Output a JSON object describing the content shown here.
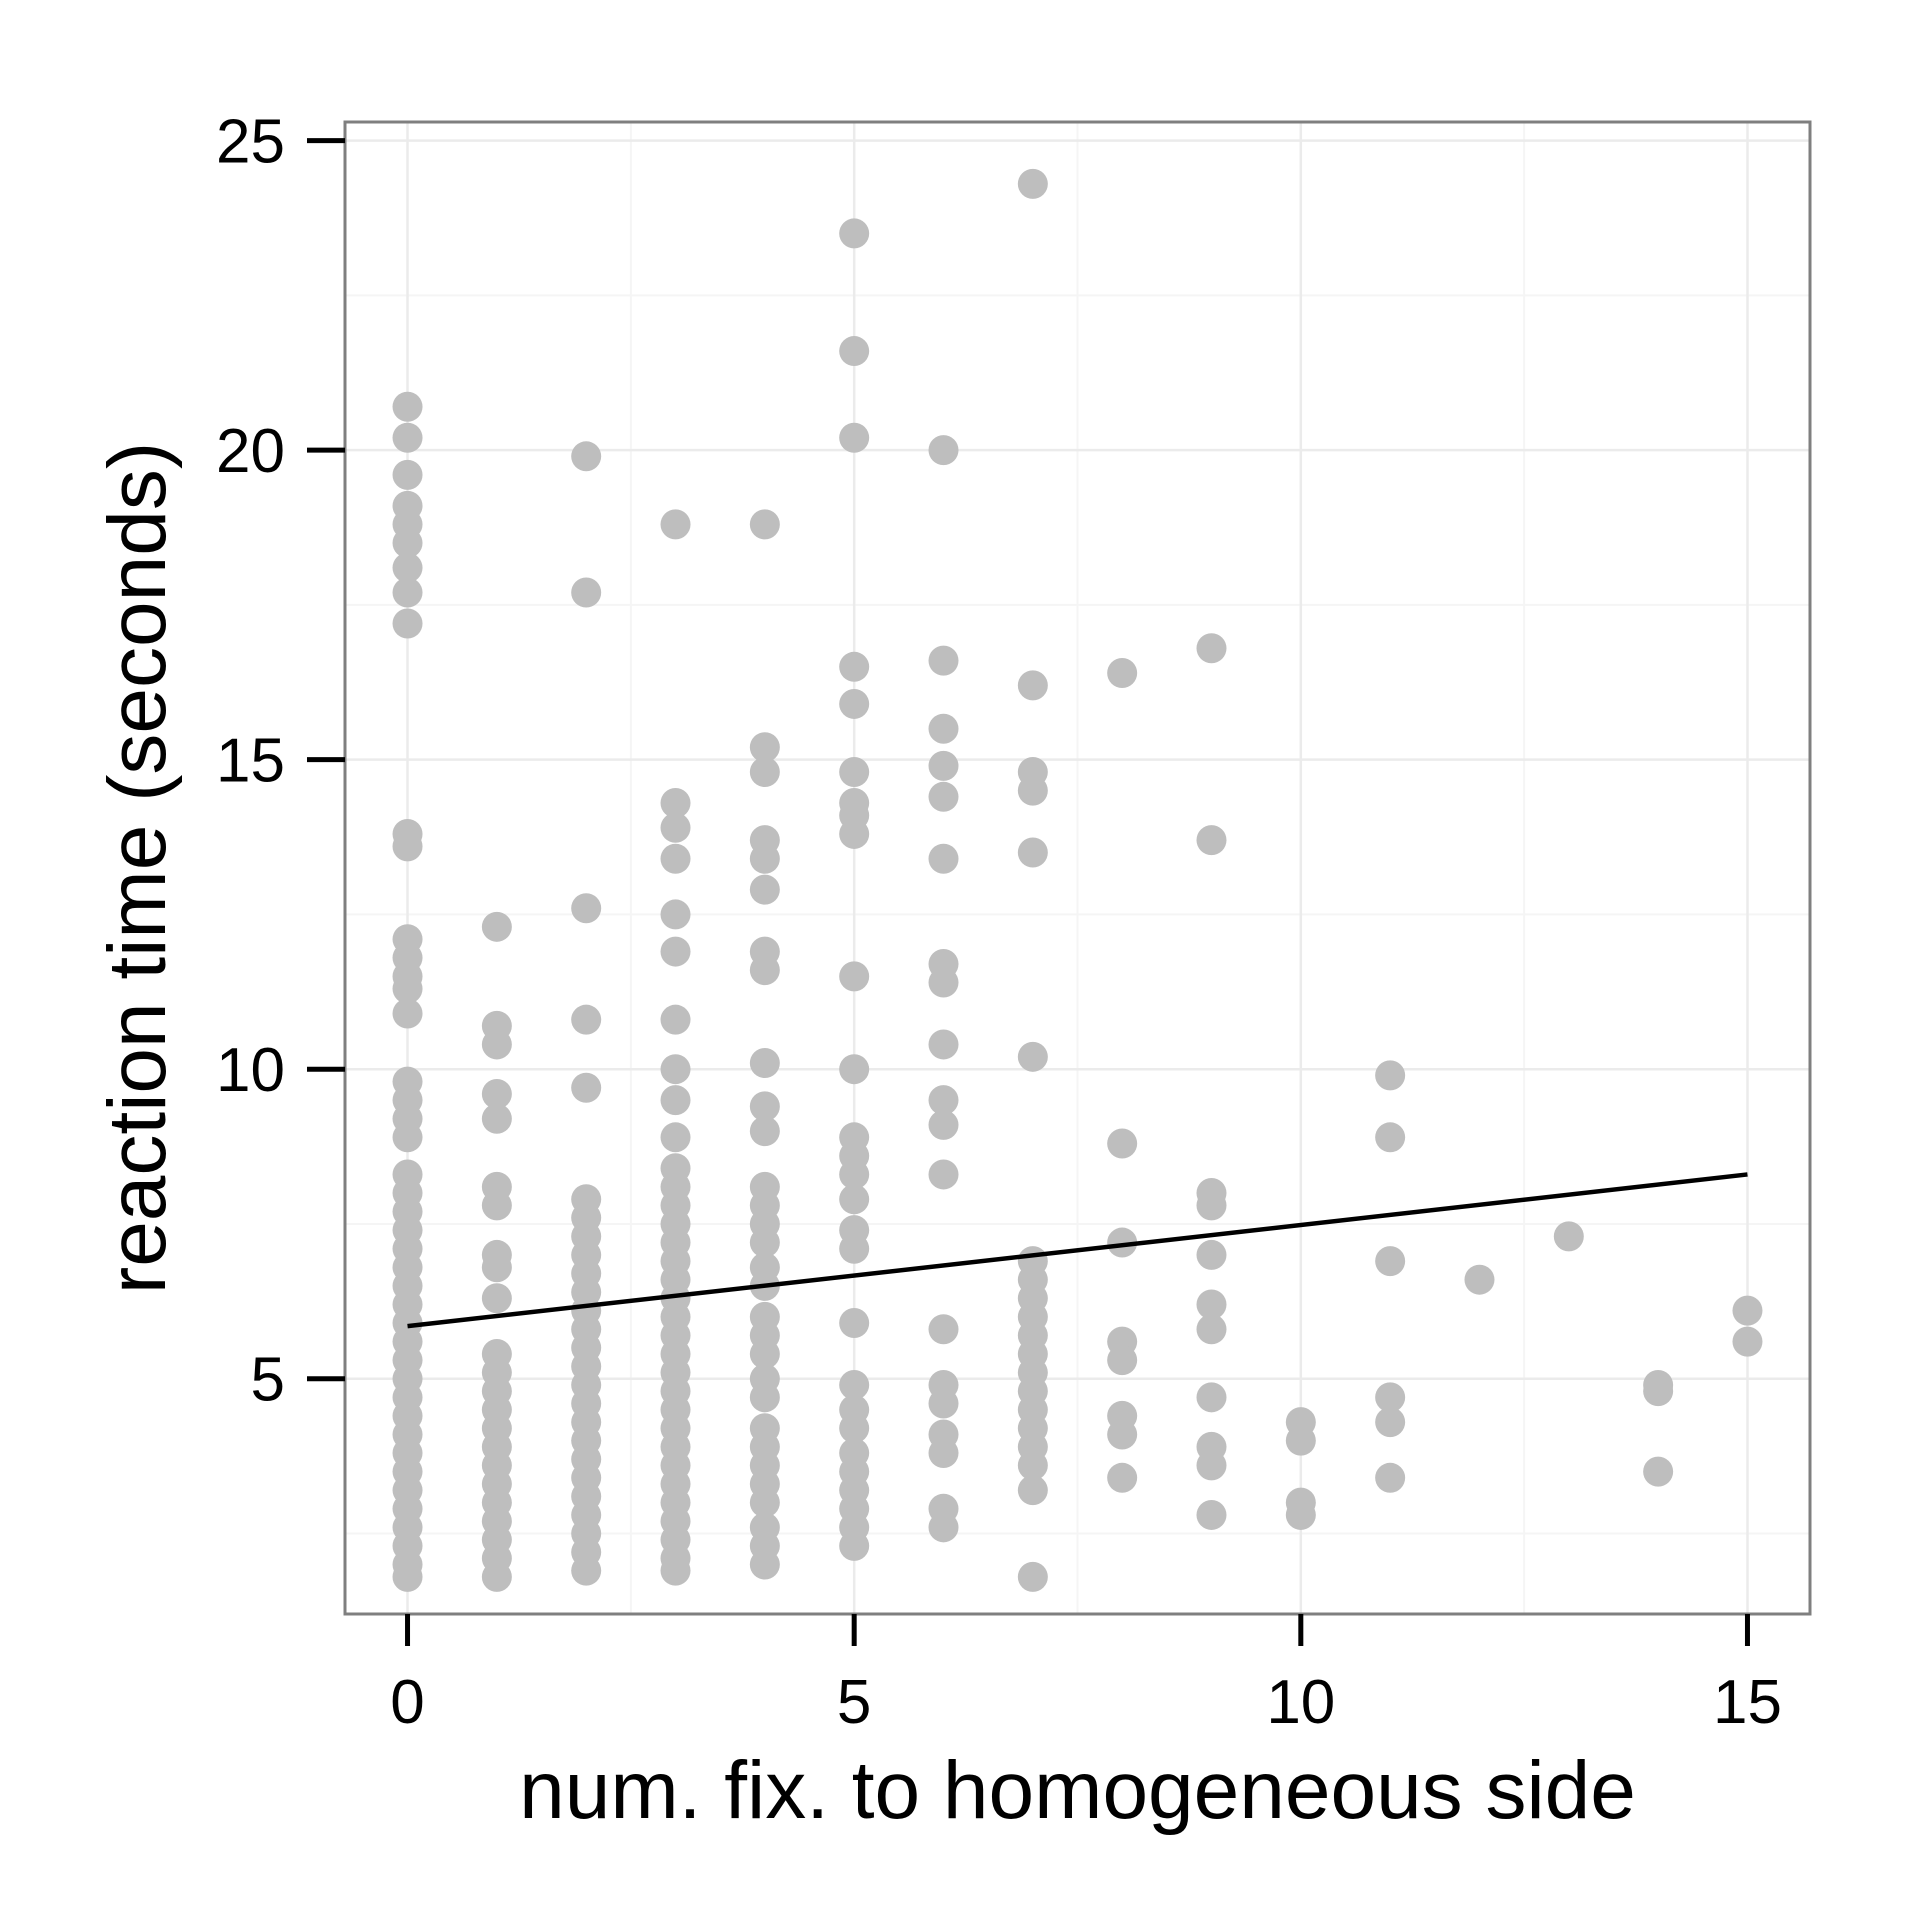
{
  "chart_data": {
    "type": "scatter",
    "title": "",
    "xlabel": "num. fix. to homogeneous side",
    "ylabel": "reaction time (seconds)",
    "xlim": [
      -0.7,
      15.7
    ],
    "ylim": [
      1.2,
      25.3
    ],
    "xticks": [
      0,
      5,
      10,
      15
    ],
    "yticks": [
      5,
      10,
      15,
      20,
      25
    ],
    "xtick_labels": [
      "0",
      "5",
      "10",
      "15"
    ],
    "ytick_labels": [
      "5",
      "10",
      "15",
      "20",
      "25"
    ],
    "grid": true,
    "point_color": "#bebebe",
    "line_color": "#000000",
    "panel_border_color": "#7f7f7f",
    "grid_color": "#ebebeb",
    "points": [
      {
        "x": 0,
        "y": 20.7
      },
      {
        "x": 0,
        "y": 20.2
      },
      {
        "x": 0,
        "y": 19.6
      },
      {
        "x": 0,
        "y": 19.1
      },
      {
        "x": 0,
        "y": 18.8
      },
      {
        "x": 0,
        "y": 18.5
      },
      {
        "x": 0,
        "y": 18.1
      },
      {
        "x": 0,
        "y": 17.7
      },
      {
        "x": 0,
        "y": 17.2
      },
      {
        "x": 0,
        "y": 13.8
      },
      {
        "x": 0,
        "y": 13.6
      },
      {
        "x": 0,
        "y": 12.1
      },
      {
        "x": 0,
        "y": 11.8
      },
      {
        "x": 0,
        "y": 11.5
      },
      {
        "x": 0,
        "y": 11.3
      },
      {
        "x": 0,
        "y": 10.9
      },
      {
        "x": 0,
        "y": 9.8
      },
      {
        "x": 0,
        "y": 9.5
      },
      {
        "x": 0,
        "y": 9.2
      },
      {
        "x": 0,
        "y": 8.9
      },
      {
        "x": 0,
        "y": 8.3
      },
      {
        "x": 0,
        "y": 8.0
      },
      {
        "x": 0,
        "y": 7.7
      },
      {
        "x": 0,
        "y": 7.4
      },
      {
        "x": 0,
        "y": 7.1
      },
      {
        "x": 0,
        "y": 6.8
      },
      {
        "x": 0,
        "y": 6.5
      },
      {
        "x": 0,
        "y": 6.2
      },
      {
        "x": 0,
        "y": 5.9
      },
      {
        "x": 0,
        "y": 5.6
      },
      {
        "x": 0,
        "y": 5.3
      },
      {
        "x": 0,
        "y": 5.0
      },
      {
        "x": 0,
        "y": 4.7
      },
      {
        "x": 0,
        "y": 4.4
      },
      {
        "x": 0,
        "y": 4.1
      },
      {
        "x": 0,
        "y": 3.8
      },
      {
        "x": 0,
        "y": 3.5
      },
      {
        "x": 0,
        "y": 3.2
      },
      {
        "x": 0,
        "y": 2.9
      },
      {
        "x": 0,
        "y": 2.6
      },
      {
        "x": 0,
        "y": 2.3
      },
      {
        "x": 0,
        "y": 2.0
      },
      {
        "x": 0,
        "y": 1.8
      },
      {
        "x": 1,
        "y": 12.3
      },
      {
        "x": 1,
        "y": 10.7
      },
      {
        "x": 1,
        "y": 10.4
      },
      {
        "x": 1,
        "y": 9.6
      },
      {
        "x": 1,
        "y": 9.2
      },
      {
        "x": 1,
        "y": 8.1
      },
      {
        "x": 1,
        "y": 7.8
      },
      {
        "x": 1,
        "y": 7.0
      },
      {
        "x": 1,
        "y": 6.8
      },
      {
        "x": 1,
        "y": 6.3
      },
      {
        "x": 1,
        "y": 5.4
      },
      {
        "x": 1,
        "y": 5.1
      },
      {
        "x": 1,
        "y": 4.8
      },
      {
        "x": 1,
        "y": 4.5
      },
      {
        "x": 1,
        "y": 4.2
      },
      {
        "x": 1,
        "y": 3.9
      },
      {
        "x": 1,
        "y": 3.6
      },
      {
        "x": 1,
        "y": 3.3
      },
      {
        "x": 1,
        "y": 3.0
      },
      {
        "x": 1,
        "y": 2.7
      },
      {
        "x": 1,
        "y": 2.4
      },
      {
        "x": 1,
        "y": 2.1
      },
      {
        "x": 1,
        "y": 1.8
      },
      {
        "x": 2,
        "y": 19.9
      },
      {
        "x": 2,
        "y": 17.7
      },
      {
        "x": 2,
        "y": 12.6
      },
      {
        "x": 2,
        "y": 10.8
      },
      {
        "x": 2,
        "y": 9.7
      },
      {
        "x": 2,
        "y": 7.9
      },
      {
        "x": 2,
        "y": 7.6
      },
      {
        "x": 2,
        "y": 7.3
      },
      {
        "x": 2,
        "y": 7.0
      },
      {
        "x": 2,
        "y": 6.7
      },
      {
        "x": 2,
        "y": 6.4
      },
      {
        "x": 2,
        "y": 6.1
      },
      {
        "x": 2,
        "y": 5.8
      },
      {
        "x": 2,
        "y": 5.5
      },
      {
        "x": 2,
        "y": 5.2
      },
      {
        "x": 2,
        "y": 4.9
      },
      {
        "x": 2,
        "y": 4.6
      },
      {
        "x": 2,
        "y": 4.3
      },
      {
        "x": 2,
        "y": 4.0
      },
      {
        "x": 2,
        "y": 3.7
      },
      {
        "x": 2,
        "y": 3.4
      },
      {
        "x": 2,
        "y": 3.1
      },
      {
        "x": 2,
        "y": 2.8
      },
      {
        "x": 2,
        "y": 2.5
      },
      {
        "x": 2,
        "y": 2.2
      },
      {
        "x": 2,
        "y": 1.9
      },
      {
        "x": 3,
        "y": 18.8
      },
      {
        "x": 3,
        "y": 14.3
      },
      {
        "x": 3,
        "y": 13.9
      },
      {
        "x": 3,
        "y": 13.4
      },
      {
        "x": 3,
        "y": 12.5
      },
      {
        "x": 3,
        "y": 11.9
      },
      {
        "x": 3,
        "y": 10.8
      },
      {
        "x": 3,
        "y": 10.0
      },
      {
        "x": 3,
        "y": 9.5
      },
      {
        "x": 3,
        "y": 8.9
      },
      {
        "x": 3,
        "y": 8.4
      },
      {
        "x": 3,
        "y": 8.1
      },
      {
        "x": 3,
        "y": 7.8
      },
      {
        "x": 3,
        "y": 7.5
      },
      {
        "x": 3,
        "y": 7.2
      },
      {
        "x": 3,
        "y": 6.9
      },
      {
        "x": 3,
        "y": 6.6
      },
      {
        "x": 3,
        "y": 6.3
      },
      {
        "x": 3,
        "y": 6.0
      },
      {
        "x": 3,
        "y": 5.7
      },
      {
        "x": 3,
        "y": 5.4
      },
      {
        "x": 3,
        "y": 5.1
      },
      {
        "x": 3,
        "y": 4.8
      },
      {
        "x": 3,
        "y": 4.5
      },
      {
        "x": 3,
        "y": 4.2
      },
      {
        "x": 3,
        "y": 3.9
      },
      {
        "x": 3,
        "y": 3.6
      },
      {
        "x": 3,
        "y": 3.3
      },
      {
        "x": 3,
        "y": 3.0
      },
      {
        "x": 3,
        "y": 2.7
      },
      {
        "x": 3,
        "y": 2.4
      },
      {
        "x": 3,
        "y": 2.1
      },
      {
        "x": 3,
        "y": 1.9
      },
      {
        "x": 4,
        "y": 18.8
      },
      {
        "x": 4,
        "y": 15.2
      },
      {
        "x": 4,
        "y": 14.8
      },
      {
        "x": 4,
        "y": 13.7
      },
      {
        "x": 4,
        "y": 13.4
      },
      {
        "x": 4,
        "y": 12.9
      },
      {
        "x": 4,
        "y": 11.9
      },
      {
        "x": 4,
        "y": 11.6
      },
      {
        "x": 4,
        "y": 10.1
      },
      {
        "x": 4,
        "y": 9.4
      },
      {
        "x": 4,
        "y": 9.0
      },
      {
        "x": 4,
        "y": 8.1
      },
      {
        "x": 4,
        "y": 7.8
      },
      {
        "x": 4,
        "y": 7.5
      },
      {
        "x": 4,
        "y": 7.2
      },
      {
        "x": 4,
        "y": 6.8
      },
      {
        "x": 4,
        "y": 6.5
      },
      {
        "x": 4,
        "y": 6.0
      },
      {
        "x": 4,
        "y": 5.7
      },
      {
        "x": 4,
        "y": 5.4
      },
      {
        "x": 4,
        "y": 5.0
      },
      {
        "x": 4,
        "y": 4.7
      },
      {
        "x": 4,
        "y": 4.2
      },
      {
        "x": 4,
        "y": 3.9
      },
      {
        "x": 4,
        "y": 3.6
      },
      {
        "x": 4,
        "y": 3.3
      },
      {
        "x": 4,
        "y": 3.0
      },
      {
        "x": 4,
        "y": 2.6
      },
      {
        "x": 4,
        "y": 2.3
      },
      {
        "x": 4,
        "y": 2.0
      },
      {
        "x": 5,
        "y": 23.5
      },
      {
        "x": 5,
        "y": 21.6
      },
      {
        "x": 5,
        "y": 20.2
      },
      {
        "x": 5,
        "y": 16.5
      },
      {
        "x": 5,
        "y": 15.9
      },
      {
        "x": 5,
        "y": 14.8
      },
      {
        "x": 5,
        "y": 14.3
      },
      {
        "x": 5,
        "y": 14.1
      },
      {
        "x": 5,
        "y": 13.8
      },
      {
        "x": 5,
        "y": 11.5
      },
      {
        "x": 5,
        "y": 10.0
      },
      {
        "x": 5,
        "y": 8.9
      },
      {
        "x": 5,
        "y": 8.6
      },
      {
        "x": 5,
        "y": 8.3
      },
      {
        "x": 5,
        "y": 7.9
      },
      {
        "x": 5,
        "y": 7.4
      },
      {
        "x": 5,
        "y": 7.1
      },
      {
        "x": 5,
        "y": 5.9
      },
      {
        "x": 5,
        "y": 4.9
      },
      {
        "x": 5,
        "y": 4.5
      },
      {
        "x": 5,
        "y": 4.2
      },
      {
        "x": 5,
        "y": 3.8
      },
      {
        "x": 5,
        "y": 3.5
      },
      {
        "x": 5,
        "y": 3.2
      },
      {
        "x": 5,
        "y": 2.9
      },
      {
        "x": 5,
        "y": 2.6
      },
      {
        "x": 5,
        "y": 2.3
      },
      {
        "x": 6,
        "y": 20.0
      },
      {
        "x": 6,
        "y": 16.6
      },
      {
        "x": 6,
        "y": 15.5
      },
      {
        "x": 6,
        "y": 14.9
      },
      {
        "x": 6,
        "y": 14.4
      },
      {
        "x": 6,
        "y": 13.4
      },
      {
        "x": 6,
        "y": 11.7
      },
      {
        "x": 6,
        "y": 11.4
      },
      {
        "x": 6,
        "y": 10.4
      },
      {
        "x": 6,
        "y": 9.5
      },
      {
        "x": 6,
        "y": 9.1
      },
      {
        "x": 6,
        "y": 8.3
      },
      {
        "x": 6,
        "y": 5.8
      },
      {
        "x": 6,
        "y": 4.9
      },
      {
        "x": 6,
        "y": 4.6
      },
      {
        "x": 6,
        "y": 4.1
      },
      {
        "x": 6,
        "y": 3.8
      },
      {
        "x": 6,
        "y": 2.9
      },
      {
        "x": 6,
        "y": 2.6
      },
      {
        "x": 7,
        "y": 24.3
      },
      {
        "x": 7,
        "y": 16.2
      },
      {
        "x": 7,
        "y": 14.8
      },
      {
        "x": 7,
        "y": 14.5
      },
      {
        "x": 7,
        "y": 13.5
      },
      {
        "x": 7,
        "y": 10.2
      },
      {
        "x": 7,
        "y": 6.9
      },
      {
        "x": 7,
        "y": 6.6
      },
      {
        "x": 7,
        "y": 6.3
      },
      {
        "x": 7,
        "y": 6.0
      },
      {
        "x": 7,
        "y": 5.7
      },
      {
        "x": 7,
        "y": 5.4
      },
      {
        "x": 7,
        "y": 5.1
      },
      {
        "x": 7,
        "y": 4.8
      },
      {
        "x": 7,
        "y": 4.5
      },
      {
        "x": 7,
        "y": 4.2
      },
      {
        "x": 7,
        "y": 3.9
      },
      {
        "x": 7,
        "y": 3.6
      },
      {
        "x": 7,
        "y": 3.2
      },
      {
        "x": 7,
        "y": 1.8
      },
      {
        "x": 8,
        "y": 16.4
      },
      {
        "x": 8,
        "y": 8.8
      },
      {
        "x": 8,
        "y": 7.2
      },
      {
        "x": 8,
        "y": 5.6
      },
      {
        "x": 8,
        "y": 5.3
      },
      {
        "x": 8,
        "y": 4.4
      },
      {
        "x": 8,
        "y": 4.1
      },
      {
        "x": 8,
        "y": 3.4
      },
      {
        "x": 9,
        "y": 16.8
      },
      {
        "x": 9,
        "y": 13.7
      },
      {
        "x": 9,
        "y": 8.0
      },
      {
        "x": 9,
        "y": 7.8
      },
      {
        "x": 9,
        "y": 7.0
      },
      {
        "x": 9,
        "y": 6.2
      },
      {
        "x": 9,
        "y": 5.8
      },
      {
        "x": 9,
        "y": 4.7
      },
      {
        "x": 9,
        "y": 3.9
      },
      {
        "x": 9,
        "y": 3.6
      },
      {
        "x": 9,
        "y": 2.8
      },
      {
        "x": 10,
        "y": 4.3
      },
      {
        "x": 10,
        "y": 4.0
      },
      {
        "x": 10,
        "y": 3.0
      },
      {
        "x": 10,
        "y": 2.8
      },
      {
        "x": 11,
        "y": 9.9
      },
      {
        "x": 11,
        "y": 8.9
      },
      {
        "x": 11,
        "y": 6.9
      },
      {
        "x": 11,
        "y": 4.7
      },
      {
        "x": 11,
        "y": 4.3
      },
      {
        "x": 11,
        "y": 3.4
      },
      {
        "x": 12,
        "y": 6.6
      },
      {
        "x": 13,
        "y": 7.3
      },
      {
        "x": 14,
        "y": 4.9
      },
      {
        "x": 14,
        "y": 4.8
      },
      {
        "x": 14,
        "y": 3.5
      },
      {
        "x": 15,
        "y": 6.1
      },
      {
        "x": 15,
        "y": 5.6
      }
    ],
    "fit_line": {
      "type": "linear",
      "x": [
        0,
        15
      ],
      "y": [
        5.85,
        8.3
      ]
    }
  }
}
